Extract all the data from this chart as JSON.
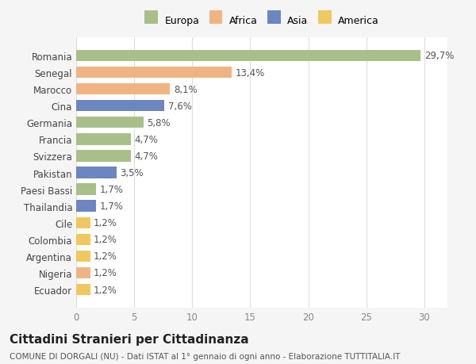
{
  "categories": [
    "Romania",
    "Senegal",
    "Marocco",
    "Cina",
    "Germania",
    "Francia",
    "Svizzera",
    "Pakistan",
    "Paesi Bassi",
    "Thailandia",
    "Cile",
    "Colombia",
    "Argentina",
    "Nigeria",
    "Ecuador"
  ],
  "values": [
    29.7,
    13.4,
    8.1,
    7.6,
    5.8,
    4.7,
    4.7,
    3.5,
    1.7,
    1.7,
    1.2,
    1.2,
    1.2,
    1.2,
    1.2
  ],
  "labels": [
    "29,7%",
    "13,4%",
    "8,1%",
    "7,6%",
    "5,8%",
    "4,7%",
    "4,7%",
    "3,5%",
    "1,7%",
    "1,7%",
    "1,2%",
    "1,2%",
    "1,2%",
    "1,2%",
    "1,2%"
  ],
  "colors": [
    "#a8bf8a",
    "#f0b484",
    "#f0b484",
    "#6b86c0",
    "#a8bf8a",
    "#a8bf8a",
    "#a8bf8a",
    "#6b86c0",
    "#a8bf8a",
    "#6b86c0",
    "#f0c860",
    "#f0c860",
    "#f0c860",
    "#f0b484",
    "#f0c860"
  ],
  "legend": [
    {
      "label": "Europa",
      "color": "#a8bf8a"
    },
    {
      "label": "Africa",
      "color": "#f0b484"
    },
    {
      "label": "Asia",
      "color": "#6b86c0"
    },
    {
      "label": "America",
      "color": "#f0c860"
    }
  ],
  "xlim": [
    0,
    32
  ],
  "xticks": [
    0,
    5,
    10,
    15,
    20,
    25,
    30
  ],
  "title": "Cittadini Stranieri per Cittadinanza",
  "subtitle": "COMUNE DI DORGALI (NU) - Dati ISTAT al 1° gennaio di ogni anno - Elaborazione TUTTITALIA.IT",
  "background_color": "#f5f5f5",
  "plot_background": "#ffffff",
  "grid_color": "#dddddd",
  "bar_height": 0.68,
  "label_fontsize": 8.5,
  "tick_fontsize": 8.5,
  "title_fontsize": 11,
  "subtitle_fontsize": 7.5
}
